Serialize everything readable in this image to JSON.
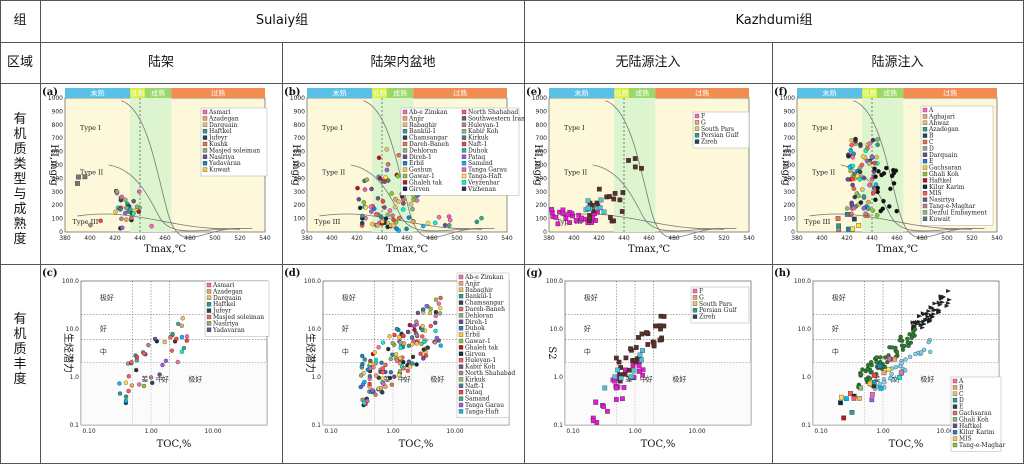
{
  "header": {
    "group_label": "组",
    "sulaiy": "Sulaiy组",
    "kazhdumi": "Kazhdumi组",
    "region_label": "区域",
    "regions": [
      "陆架",
      "陆架内盆地",
      "无陆源注入",
      "陆源注入"
    ]
  },
  "row_labels": {
    "type_maturity": "有机质类型与成熟度",
    "abundance": "有机质丰度"
  },
  "maturity_bands": [
    "未熟",
    "低熟",
    "成熟",
    "过熟"
  ],
  "kerogen_types": [
    "Type I",
    "Type II",
    "Type III"
  ],
  "axes": {
    "tmax": "Tmax,℃",
    "hi": "HI,mg/g",
    "toc": "TOC,%",
    "s2": "S2",
    "s1s2": "生烃潜力"
  },
  "tmax_ticks": [
    "380",
    "400",
    "420",
    "440",
    "460",
    "480",
    "500",
    "520",
    "540"
  ],
  "hi_ticks": [
    "0",
    "100",
    "200",
    "300",
    "400",
    "500",
    "600",
    "700",
    "800",
    "900",
    "1000"
  ],
  "toc_ticks": [
    "0.10",
    "1.00",
    "10.00"
  ],
  "log_ticks": [
    "0.1",
    "1.0",
    "10.0",
    "100.0"
  ],
  "zones": {
    "excellent": "极好",
    "good": "好",
    "medium": "中",
    "poor": "差"
  },
  "panels": {
    "a": {
      "label": "(a)",
      "legend": [
        "Asmari",
        "Azadegan",
        "Darquain",
        "Haftkel",
        "Jufeyr",
        "Kushk",
        "Masjed soleiman",
        "Nasiriya",
        "Yadavaran",
        "Kuwait"
      ]
    },
    "b": {
      "label": "(b)",
      "legend": [
        "Ab-e Zimkan",
        "Anjir",
        "Babaghir",
        "Bankul-1",
        "Chamsangar",
        "Dareh-Baneh",
        "Dehloran",
        "Direh-1",
        "Erbil",
        "Gashun",
        "Gawar-1",
        "Ghaleh tak",
        "Girven",
        "North Shahabad",
        "Southwestern Iran",
        "Huleyan-1",
        "Kabir Koh",
        "Kirkuk",
        "Naft-1",
        "Duhok",
        "Pataq",
        "Samand",
        "Tanga Garau",
        "Tanga-Haft",
        "Veyzenhar",
        "Vizhenan"
      ]
    },
    "c": {
      "label": "(c)",
      "legend": [
        "Asmari",
        "Azadegan",
        "Darquain",
        "Haftkel",
        "Jufeyr",
        "Masjed soleiman",
        "Nasiriya",
        "Yadavaran"
      ]
    },
    "d": {
      "label": "(d)",
      "legend": [
        "Ab-e Zimkan",
        "Anjir",
        "Babaghir",
        "Bankul-1",
        "Chamsangar",
        "Dareh-Baneh",
        "Dehloran",
        "Direh-1",
        "Duhok",
        "Erbil",
        "Gawar-1",
        "Ghaleh tak",
        "Girven",
        "Huleyan-1",
        "Kabir Koh",
        "North Shahabad",
        "Kirkuk",
        "Naft-1",
        "Pataq",
        "Samand",
        "Tanga Garau",
        "Tanga-Haft"
      ]
    },
    "e": {
      "label": "(e)",
      "legend": [
        "F",
        "G",
        "South Pars",
        "Persian Gulf",
        "Zireh"
      ]
    },
    "f": {
      "label": "(f)",
      "legend": [
        "A",
        "Aghajari",
        "Ahwaz",
        "Azadegan",
        "B",
        "C",
        "D",
        "Darquain",
        "E",
        "Gachsaran",
        "Ghali Koh",
        "Haftkel",
        "Kilur Karim",
        "MIS",
        "Nasiriya",
        "Tang-e-Maghar",
        "Dezful Embayment",
        "Kuwait"
      ]
    },
    "g": {
      "label": "(g)",
      "legend": [
        "F",
        "G",
        "South Pars",
        "Persian Gulf",
        "Zireh"
      ]
    },
    "h": {
      "label": "(h)",
      "legend": [
        "A",
        "B",
        "C",
        "D",
        "E",
        "Gachsaran",
        "Ghali Koh",
        "Haftkel",
        "Kilur Karim",
        "MIS",
        "Tang-e-Maghar"
      ]
    }
  },
  "colors": {
    "band_immature": "#5bc0e8",
    "band_low": "#d8ef3a",
    "band_mature": "#9ad86a",
    "band_over": "#f28d52",
    "plot_bg": "#fdf8d9",
    "mature_bg": "#dcf5cf"
  }
}
